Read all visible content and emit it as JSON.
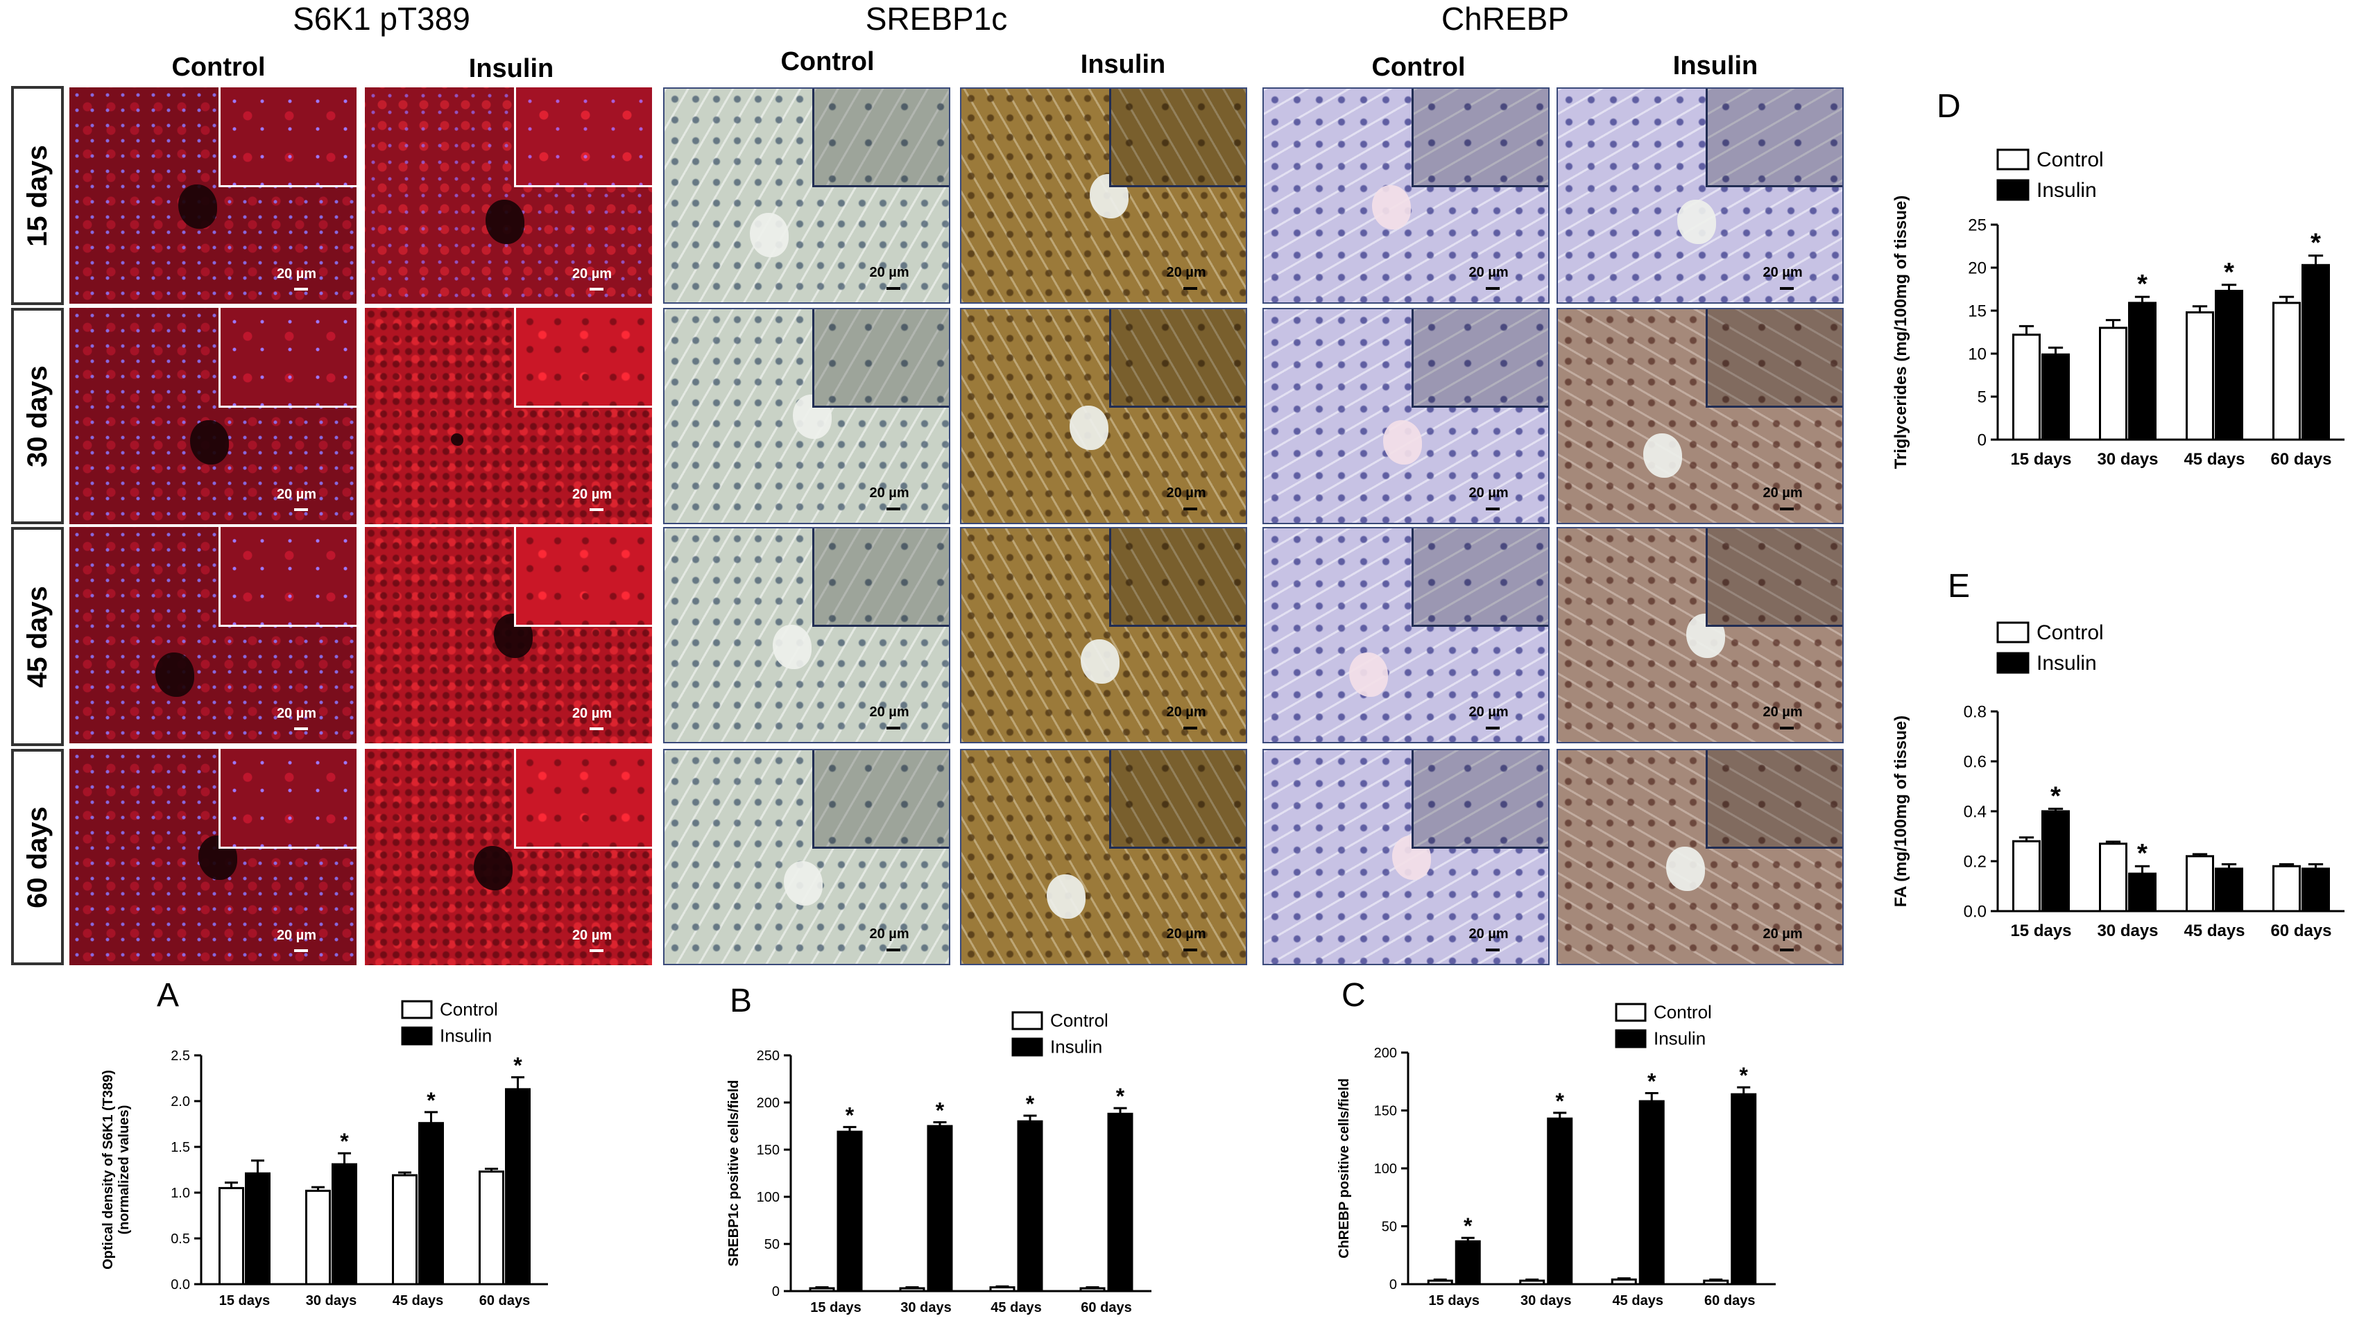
{
  "colors": {
    "bar_control": "#ffffff",
    "bar_insulin": "#000000",
    "axis": "#000000"
  },
  "micro": {
    "headings": [
      "S6K1 pT389",
      "SREBP1c",
      "ChREBP"
    ],
    "col_labels": [
      "Control",
      "Insulin",
      "Control",
      "Insulin",
      "Control",
      "Insulin"
    ],
    "row_labels": [
      "15 days",
      "30 days",
      "45 days",
      "60 days"
    ],
    "scale_bar": "20 µm"
  },
  "chart_data": [
    {
      "letter": "A",
      "type": "bar",
      "categories": [
        "15 days",
        "30 days",
        "45 days",
        "60 days"
      ],
      "series": [
        {
          "name": "Control",
          "values": [
            1.05,
            1.02,
            1.19,
            1.23
          ],
          "err": [
            0.06,
            0.04,
            0.03,
            0.03
          ]
        },
        {
          "name": "Insulin",
          "values": [
            1.21,
            1.31,
            1.76,
            2.13
          ],
          "err": [
            0.14,
            0.12,
            0.12,
            0.13
          ]
        }
      ],
      "significant": [
        false,
        true,
        true,
        true
      ],
      "ylabel": "Optical density of S6K1 (T389)",
      "ylabel2": "(normalized values)",
      "ylim": [
        0,
        2.5
      ],
      "yticks": [
        "0.0",
        "0.5",
        "1.0",
        "1.5",
        "2.0",
        "2.5"
      ],
      "legend_pos": "top-right",
      "grid": false
    },
    {
      "letter": "B",
      "type": "bar",
      "categories": [
        "15 days",
        "30 days",
        "45 days",
        "60 days"
      ],
      "series": [
        {
          "name": "Control",
          "values": [
            3,
            3,
            4,
            3
          ],
          "err": [
            1,
            1,
            1,
            1
          ]
        },
        {
          "name": "Insulin",
          "values": [
            169,
            175,
            180,
            188
          ],
          "err": [
            5,
            4,
            6,
            6
          ]
        }
      ],
      "significant": [
        true,
        true,
        true,
        true
      ],
      "ylabel": "SREBP1c positive cells/field",
      "ylabel2": "",
      "ylim": [
        0,
        250
      ],
      "yticks": [
        "0",
        "50",
        "100",
        "150",
        "200",
        "250"
      ],
      "legend_pos": "top-right",
      "grid": false
    },
    {
      "letter": "C",
      "type": "bar",
      "categories": [
        "15 days",
        "30 days",
        "45 days",
        "60 days"
      ],
      "series": [
        {
          "name": "Control",
          "values": [
            3,
            3,
            4,
            3
          ],
          "err": [
            1,
            1,
            1,
            1
          ]
        },
        {
          "name": "Insulin",
          "values": [
            37,
            143,
            158,
            164
          ],
          "err": [
            3,
            5,
            7,
            6
          ]
        }
      ],
      "significant": [
        true,
        true,
        true,
        true
      ],
      "ylabel": "ChREBP positive cells/field",
      "ylabel2": "",
      "ylim": [
        0,
        200
      ],
      "yticks": [
        "0",
        "50",
        "100",
        "150",
        "200"
      ],
      "legend_pos": "top-right",
      "grid": false
    },
    {
      "letter": "D",
      "type": "bar",
      "categories": [
        "15 days",
        "30 days",
        "45 days",
        "60 days"
      ],
      "series": [
        {
          "name": "Control",
          "values": [
            12.2,
            13.0,
            14.8,
            15.9
          ],
          "err": [
            1.0,
            0.9,
            0.7,
            0.7
          ]
        },
        {
          "name": "Insulin",
          "values": [
            9.9,
            15.9,
            17.3,
            20.3
          ],
          "err": [
            0.8,
            0.7,
            0.7,
            1.1
          ]
        }
      ],
      "significant": [
        false,
        true,
        true,
        true
      ],
      "ylabel": "Triglycerides (mg/100mg of tissue)",
      "ylabel2": "",
      "ylim": [
        0,
        25
      ],
      "yticks": [
        "0",
        "5",
        "10",
        "15",
        "20",
        "25"
      ],
      "legend_pos": "top-left",
      "grid": false
    },
    {
      "letter": "E",
      "type": "bar",
      "categories": [
        "15 days",
        "30 days",
        "45 days",
        "60 days"
      ],
      "series": [
        {
          "name": "Control",
          "values": [
            0.28,
            0.27,
            0.22,
            0.18
          ],
          "err": [
            0.015,
            0.008,
            0.008,
            0.008
          ]
        },
        {
          "name": "Insulin",
          "values": [
            0.4,
            0.15,
            0.17,
            0.17
          ],
          "err": [
            0.01,
            0.03,
            0.018,
            0.018
          ]
        }
      ],
      "significant": [
        true,
        true,
        false,
        false
      ],
      "ylabel": "FA (mg/100mg of tissue)",
      "ylabel2": "",
      "ylim": [
        0,
        0.8
      ],
      "yticks": [
        "0.0",
        "0.2",
        "0.4",
        "0.6",
        "0.8"
      ],
      "legend_pos": "top-left",
      "grid": false
    }
  ]
}
